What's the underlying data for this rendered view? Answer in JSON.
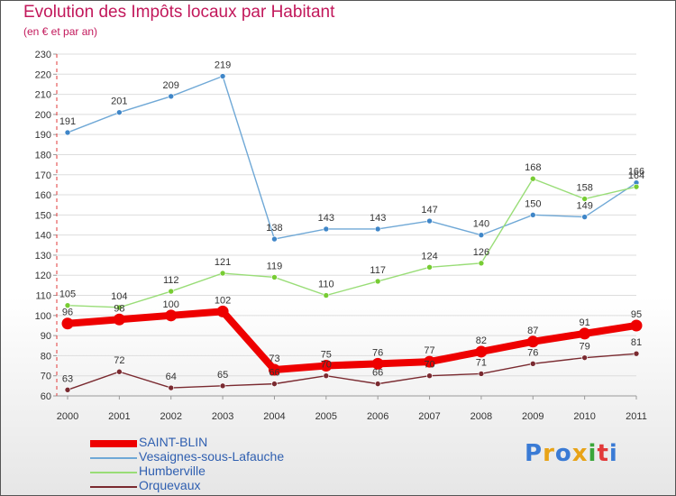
{
  "header": {
    "title": "Evolution des Impôts locaux par Habitant",
    "subtitle": "(en € et par an)"
  },
  "logo": {
    "letters": [
      "P",
      "r",
      "o",
      "x",
      "i",
      "t",
      "i"
    ],
    "colors": [
      "#3a7bd5",
      "#e8a317",
      "#3a7bd5",
      "#e8a317",
      "#3aa63a",
      "#e23a3a",
      "#3a7bd5"
    ]
  },
  "chart_data": {
    "type": "line",
    "title": "Evolution des Impôts locaux par Habitant",
    "subtitle": "(en € et par an)",
    "xlabel": "",
    "ylabel": "",
    "x": [
      "2000",
      "2001",
      "2002",
      "2003",
      "2004",
      "2005",
      "2006",
      "2007",
      "2008",
      "2009",
      "2010",
      "2011"
    ],
    "ylim": [
      60,
      230
    ],
    "yticks": [
      60,
      70,
      80,
      90,
      100,
      110,
      120,
      130,
      140,
      150,
      160,
      170,
      180,
      190,
      200,
      210,
      220,
      230
    ],
    "grid": true,
    "legend_position": "bottom-left",
    "series": [
      {
        "name": "SAINT-BLIN",
        "color": "#ee0000",
        "emphasis": true,
        "values": [
          96,
          98,
          100,
          102,
          73,
          75,
          76,
          77,
          82,
          87,
          91,
          95
        ]
      },
      {
        "name": "Vesaignes-sous-Lafauche",
        "color": "#6fa8d6",
        "marker": "#3f86c8",
        "emphasis": false,
        "values": [
          191,
          201,
          209,
          219,
          138,
          143,
          143,
          147,
          140,
          150,
          149,
          166
        ]
      },
      {
        "name": "Humberville",
        "color": "#99dd77",
        "marker": "#77cc33",
        "emphasis": false,
        "values": [
          105,
          104,
          112,
          121,
          119,
          110,
          117,
          124,
          126,
          168,
          158,
          164
        ]
      },
      {
        "name": "Orquevaux",
        "color": "#7a2a30",
        "marker": "#7a2a30",
        "emphasis": false,
        "values": [
          63,
          72,
          64,
          65,
          66,
          70,
          66,
          70,
          71,
          76,
          79,
          81
        ]
      }
    ]
  }
}
